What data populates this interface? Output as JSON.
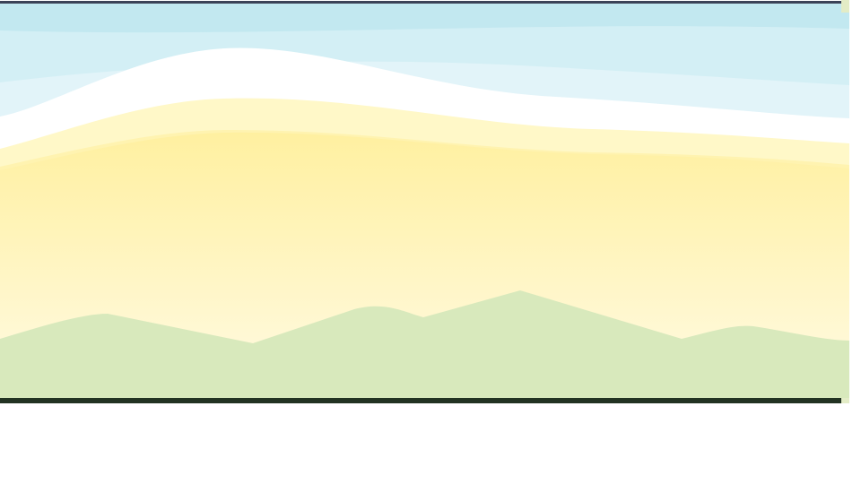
{
  "scene": {
    "type": "decorative-landscape-banner",
    "elements": [
      "sky-bands",
      "white-wave",
      "yellow-gradient-field",
      "green-hills"
    ],
    "colors": {
      "frame_top": "#3b4257",
      "frame_bottom": "#223322",
      "sky_1": "#c2e8f0",
      "sky_2": "#d3eff5",
      "sky_3": "#e2f4f9",
      "wave": "#ffffff",
      "cream_1": "#fff8c8",
      "cream_2": "#fff3b0",
      "yellow_top": "#fff0a0",
      "yellow_bottom": "#fffbe8",
      "hills": "#d8e9bc",
      "edge_accent": "#e3ecc6"
    }
  }
}
